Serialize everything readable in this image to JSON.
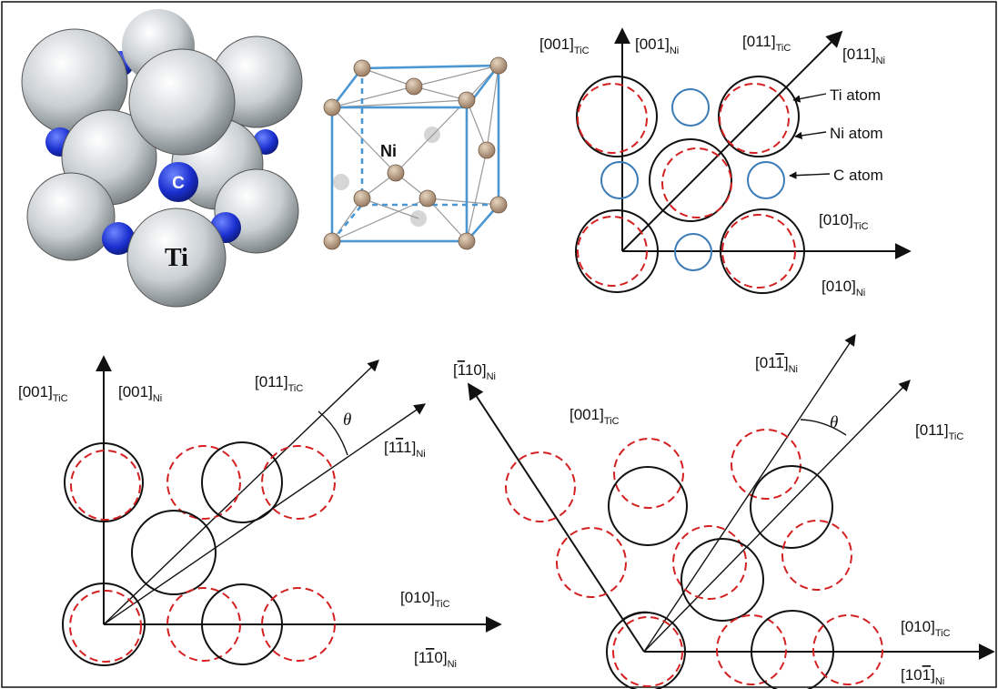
{
  "colors": {
    "ti_circle": "#111111",
    "ni_circle": "#d42020",
    "c_circle": "#3b7bb6",
    "ti_sphere": "#c9cfd3",
    "c_sphere": "#1a2fcf",
    "ni_node": "#a88b6f",
    "cube_edge": "#4a97d3"
  },
  "structures": {
    "tic_c_label": "C",
    "tic_ti_label": "Ti",
    "ni_label": "Ni"
  },
  "panel_top": {
    "z_tic": "[001]",
    "z_tic_sub": "TiC",
    "z_ni": "[001]",
    "z_ni_sub": "Ni",
    "diag_tic": "[011]",
    "diag_tic_sub": "TiC",
    "diag_ni": "[011]",
    "diag_ni_sub": "Ni",
    "x_tic": "[010]",
    "x_tic_sub": "TiC",
    "x_ni": "[010]",
    "x_ni_sub": "Ni",
    "legend_ti": "Ti atom",
    "legend_ni": "Ni atom",
    "legend_c": "C atom"
  },
  "panel_left": {
    "z_tic": "[001]",
    "z_tic_sub": "TiC",
    "z_ni": "[001]",
    "z_ni_sub": "Ni",
    "diag_tic": "[011]",
    "diag_tic_sub": "TiC",
    "diag_ni_pre": "[1",
    "diag_ni_bar": "1",
    "diag_ni_post": "1]",
    "diag_ni_sub": "Ni",
    "theta": "θ",
    "x_tic": "[010]",
    "x_tic_sub": "TiC",
    "x_ni_pre": "[1",
    "x_ni_bar": "1",
    "x_ni_post": "0]",
    "x_ni_sub": "Ni"
  },
  "panel_right": {
    "left_ni_pre": "[",
    "left_ni_bar": "1",
    "left_ni_post": "10]",
    "left_ni_sub": "Ni",
    "z_tic": "[001]",
    "z_tic_sub": "TiC",
    "top_ni_pre": "[01",
    "top_ni_bar": "1",
    "top_ni_post": "]",
    "top_ni_sub": "Ni",
    "theta": "θ",
    "diag_tic": "[011]",
    "diag_tic_sub": "TiC",
    "x_tic": "[010]",
    "x_tic_sub": "TiC",
    "x_ni_pre": "[10",
    "x_ni_bar": "1",
    "x_ni_post": "]",
    "x_ni_sub": "Ni"
  }
}
